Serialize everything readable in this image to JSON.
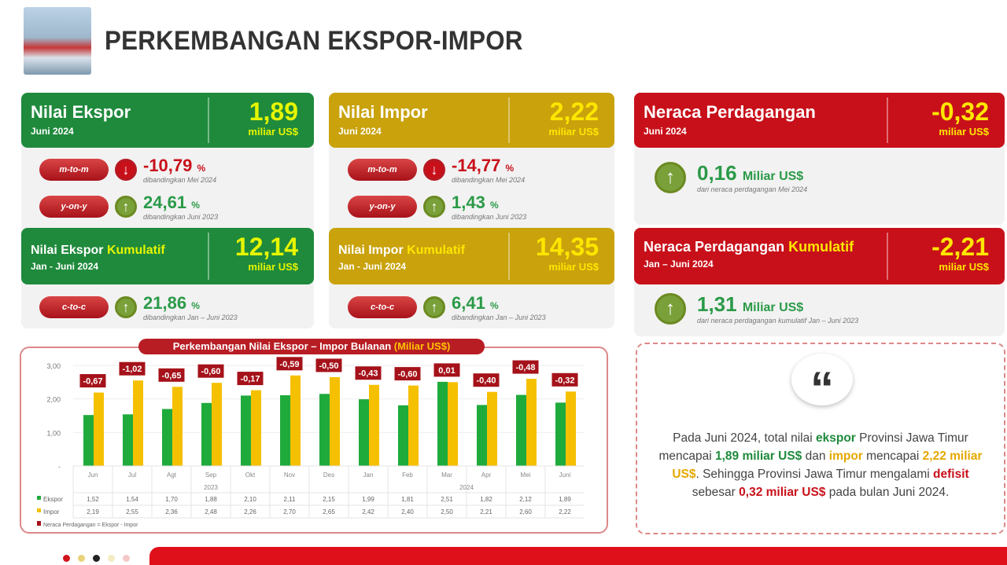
{
  "title": "PERKEMBANGAN EKSPOR-IMPOR",
  "ekspor": {
    "label": "Nilai Ekspor",
    "period": "Juni 2024",
    "value": "1,89",
    "unit": "miliar US$",
    "mtm": {
      "label": "m-to-m",
      "value": "-10,79",
      "pct": "%",
      "cmp": "dibandingkan Mei 2024"
    },
    "yoy": {
      "label": "y-on-y",
      "value": "24,61",
      "pct": "%",
      "cmp": "dibandingkan Juni 2023"
    },
    "kum_label": "Nilai Ekspor",
    "kum_word": "Kumulatif",
    "kum_period": "Jan - Juni 2024",
    "kum_value": "12,14",
    "kum_unit": "miliar US$",
    "ctc": {
      "label": "c-to-c",
      "value": "21,86",
      "pct": "%",
      "cmp": "dibandingkan Jan – Juni 2023"
    }
  },
  "impor": {
    "label": "Nilai Impor",
    "period": "Juni 2024",
    "value": "2,22",
    "unit": "miliar US$",
    "mtm": {
      "label": "m-to-m",
      "value": "-14,77",
      "pct": "%",
      "cmp": "dibandingkan Mei 2024"
    },
    "yoy": {
      "label": "y-on-y",
      "value": "1,43",
      "pct": "%",
      "cmp": "dibandingkan Juni 2023"
    },
    "kum_label": "Nilai Impor",
    "kum_word": "Kumulatif",
    "kum_period": "Jan - Juni 2024",
    "kum_value": "14,35",
    "kum_unit": "miliar US$",
    "ctc": {
      "label": "c-to-c",
      "value": "6,41",
      "pct": "%",
      "cmp": "dibandingkan Jan – Juni 2023"
    }
  },
  "neraca": {
    "label": "Neraca Perdagangan",
    "period": "Juni 2024",
    "value": "-0,32",
    "unit": "miliar US$",
    "change": "0,16",
    "change_unit": "Miliar US$",
    "cmp": "dari neraca perdagangan Mei 2024",
    "kum_label": "Neraca Perdagangan",
    "kum_word": "Kumulatif",
    "kum_period": "Jan – Juni 2024",
    "kum_value": "-2,21",
    "kum_unit": "miliar US$",
    "kum_change": "1,31",
    "kum_change_unit": "Miliar US$",
    "kum_cmp": "dari neraca perdagangan kumulatif Jan – Juni 2023"
  },
  "quote": {
    "p1": "Pada Juni 2024, total nilai ",
    "ekspor": "ekspor",
    "p2": " Provinsi Jawa Timur mencapai ",
    "v1": "1,89 miliar US$",
    "p3": " dan ",
    "impor": "impor",
    "p4": " mencapai ",
    "v2": "2,22 miliar US$",
    "p5": ". Sehingga Provinsi Jawa Timur mengalami ",
    "defisit": "defisit",
    "p6": " sebesar ",
    "v3": "0,32 miliar US$",
    "p7": " pada bulan Juni 2024."
  },
  "chart_data": {
    "type": "bar",
    "title": "Perkembangan Nilai Ekspor – Impor Bulanan",
    "title_unit": "(Miliar US$)",
    "categories": [
      "Jun",
      "Jul",
      "Agt",
      "Sep",
      "Okt",
      "Nov",
      "Des",
      "Jan",
      "Feb",
      "Mar",
      "Apr",
      "Mei",
      "Juni"
    ],
    "years": [
      {
        "label": "2023",
        "span": 7
      },
      {
        "label": "2024",
        "span": 6
      }
    ],
    "yticks": [
      "3,00",
      "2,00",
      "1,00",
      "-"
    ],
    "ylim": [
      0,
      3
    ],
    "series": [
      {
        "name": "Ekspor",
        "color": "#1faa3c",
        "values": [
          1.52,
          1.54,
          1.7,
          1.88,
          2.1,
          2.11,
          2.15,
          1.99,
          1.81,
          2.51,
          1.82,
          2.12,
          1.89
        ],
        "labels": [
          "1,52",
          "1,54",
          "1,70",
          "1,88",
          "2,10",
          "2,11",
          "2,15",
          "1,99",
          "1,81",
          "2,51",
          "1,82",
          "2,12",
          "1,89"
        ]
      },
      {
        "name": "Impor",
        "color": "#f5c000",
        "values": [
          2.19,
          2.55,
          2.36,
          2.48,
          2.26,
          2.7,
          2.65,
          2.42,
          2.4,
          2.5,
          2.21,
          2.6,
          2.22
        ],
        "labels": [
          "2,19",
          "2,55",
          "2,36",
          "2,48",
          "2,26",
          "2,70",
          "2,65",
          "2,42",
          "2,40",
          "2,50",
          "2,21",
          "2,60",
          "2,22"
        ]
      }
    ],
    "neraca": {
      "name": "Neraca Perdagangan = Ekspor - Impor",
      "color": "#a5121a",
      "labels": [
        "-0,67",
        "-1,02",
        "-0,65",
        "-0,60",
        "-0,17",
        "-0,59",
        "-0,50",
        "-0,43",
        "-0,60",
        "0,01",
        "-0,40",
        "-0,48",
        "-0,32"
      ]
    }
  }
}
